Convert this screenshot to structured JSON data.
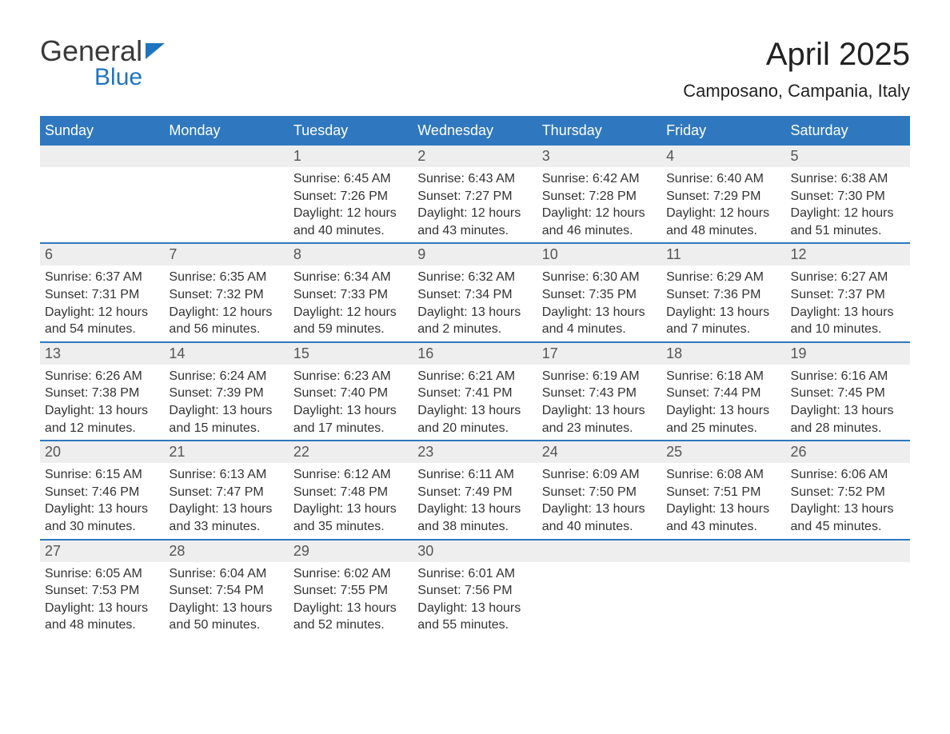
{
  "branding": {
    "logo_word1": "General",
    "logo_word2": "Blue"
  },
  "title": {
    "month_year": "April 2025",
    "location": "Camposano, Campania, Italy"
  },
  "calendar": {
    "type": "month-grid",
    "columns": 7,
    "weekday_headers": [
      "Sunday",
      "Monday",
      "Tuesday",
      "Wednesday",
      "Thursday",
      "Friday",
      "Saturday"
    ],
    "colors": {
      "header_bg": "#2f78bf",
      "header_text": "#ffffff",
      "week_divider": "#2f78bf",
      "daynum_bg": "#eeeeee",
      "daynum_text": "#555555",
      "body_text": "#333333",
      "page_bg": "#ffffff"
    },
    "typography": {
      "title_fontsize_pt": 30,
      "subtitle_fontsize_pt": 17,
      "header_fontsize_pt": 14,
      "daynum_fontsize_pt": 14,
      "body_fontsize_pt": 12,
      "font_family": "Arial"
    },
    "cells": [
      {
        "day": "",
        "lines": []
      },
      {
        "day": "",
        "lines": []
      },
      {
        "day": "1",
        "lines": [
          "Sunrise: 6:45 AM",
          "Sunset: 7:26 PM",
          "Daylight: 12 hours and 40 minutes."
        ]
      },
      {
        "day": "2",
        "lines": [
          "Sunrise: 6:43 AM",
          "Sunset: 7:27 PM",
          "Daylight: 12 hours and 43 minutes."
        ]
      },
      {
        "day": "3",
        "lines": [
          "Sunrise: 6:42 AM",
          "Sunset: 7:28 PM",
          "Daylight: 12 hours and 46 minutes."
        ]
      },
      {
        "day": "4",
        "lines": [
          "Sunrise: 6:40 AM",
          "Sunset: 7:29 PM",
          "Daylight: 12 hours and 48 minutes."
        ]
      },
      {
        "day": "5",
        "lines": [
          "Sunrise: 6:38 AM",
          "Sunset: 7:30 PM",
          "Daylight: 12 hours and 51 minutes."
        ]
      },
      {
        "day": "6",
        "lines": [
          "Sunrise: 6:37 AM",
          "Sunset: 7:31 PM",
          "Daylight: 12 hours and 54 minutes."
        ]
      },
      {
        "day": "7",
        "lines": [
          "Sunrise: 6:35 AM",
          "Sunset: 7:32 PM",
          "Daylight: 12 hours and 56 minutes."
        ]
      },
      {
        "day": "8",
        "lines": [
          "Sunrise: 6:34 AM",
          "Sunset: 7:33 PM",
          "Daylight: 12 hours and 59 minutes."
        ]
      },
      {
        "day": "9",
        "lines": [
          "Sunrise: 6:32 AM",
          "Sunset: 7:34 PM",
          "Daylight: 13 hours and 2 minutes."
        ]
      },
      {
        "day": "10",
        "lines": [
          "Sunrise: 6:30 AM",
          "Sunset: 7:35 PM",
          "Daylight: 13 hours and 4 minutes."
        ]
      },
      {
        "day": "11",
        "lines": [
          "Sunrise: 6:29 AM",
          "Sunset: 7:36 PM",
          "Daylight: 13 hours and 7 minutes."
        ]
      },
      {
        "day": "12",
        "lines": [
          "Sunrise: 6:27 AM",
          "Sunset: 7:37 PM",
          "Daylight: 13 hours and 10 minutes."
        ]
      },
      {
        "day": "13",
        "lines": [
          "Sunrise: 6:26 AM",
          "Sunset: 7:38 PM",
          "Daylight: 13 hours and 12 minutes."
        ]
      },
      {
        "day": "14",
        "lines": [
          "Sunrise: 6:24 AM",
          "Sunset: 7:39 PM",
          "Daylight: 13 hours and 15 minutes."
        ]
      },
      {
        "day": "15",
        "lines": [
          "Sunrise: 6:23 AM",
          "Sunset: 7:40 PM",
          "Daylight: 13 hours and 17 minutes."
        ]
      },
      {
        "day": "16",
        "lines": [
          "Sunrise: 6:21 AM",
          "Sunset: 7:41 PM",
          "Daylight: 13 hours and 20 minutes."
        ]
      },
      {
        "day": "17",
        "lines": [
          "Sunrise: 6:19 AM",
          "Sunset: 7:43 PM",
          "Daylight: 13 hours and 23 minutes."
        ]
      },
      {
        "day": "18",
        "lines": [
          "Sunrise: 6:18 AM",
          "Sunset: 7:44 PM",
          "Daylight: 13 hours and 25 minutes."
        ]
      },
      {
        "day": "19",
        "lines": [
          "Sunrise: 6:16 AM",
          "Sunset: 7:45 PM",
          "Daylight: 13 hours and 28 minutes."
        ]
      },
      {
        "day": "20",
        "lines": [
          "Sunrise: 6:15 AM",
          "Sunset: 7:46 PM",
          "Daylight: 13 hours and 30 minutes."
        ]
      },
      {
        "day": "21",
        "lines": [
          "Sunrise: 6:13 AM",
          "Sunset: 7:47 PM",
          "Daylight: 13 hours and 33 minutes."
        ]
      },
      {
        "day": "22",
        "lines": [
          "Sunrise: 6:12 AM",
          "Sunset: 7:48 PM",
          "Daylight: 13 hours and 35 minutes."
        ]
      },
      {
        "day": "23",
        "lines": [
          "Sunrise: 6:11 AM",
          "Sunset: 7:49 PM",
          "Daylight: 13 hours and 38 minutes."
        ]
      },
      {
        "day": "24",
        "lines": [
          "Sunrise: 6:09 AM",
          "Sunset: 7:50 PM",
          "Daylight: 13 hours and 40 minutes."
        ]
      },
      {
        "day": "25",
        "lines": [
          "Sunrise: 6:08 AM",
          "Sunset: 7:51 PM",
          "Daylight: 13 hours and 43 minutes."
        ]
      },
      {
        "day": "26",
        "lines": [
          "Sunrise: 6:06 AM",
          "Sunset: 7:52 PM",
          "Daylight: 13 hours and 45 minutes."
        ]
      },
      {
        "day": "27",
        "lines": [
          "Sunrise: 6:05 AM",
          "Sunset: 7:53 PM",
          "Daylight: 13 hours and 48 minutes."
        ]
      },
      {
        "day": "28",
        "lines": [
          "Sunrise: 6:04 AM",
          "Sunset: 7:54 PM",
          "Daylight: 13 hours and 50 minutes."
        ]
      },
      {
        "day": "29",
        "lines": [
          "Sunrise: 6:02 AM",
          "Sunset: 7:55 PM",
          "Daylight: 13 hours and 52 minutes."
        ]
      },
      {
        "day": "30",
        "lines": [
          "Sunrise: 6:01 AM",
          "Sunset: 7:56 PM",
          "Daylight: 13 hours and 55 minutes."
        ]
      },
      {
        "day": "",
        "lines": []
      },
      {
        "day": "",
        "lines": []
      },
      {
        "day": "",
        "lines": []
      }
    ]
  }
}
